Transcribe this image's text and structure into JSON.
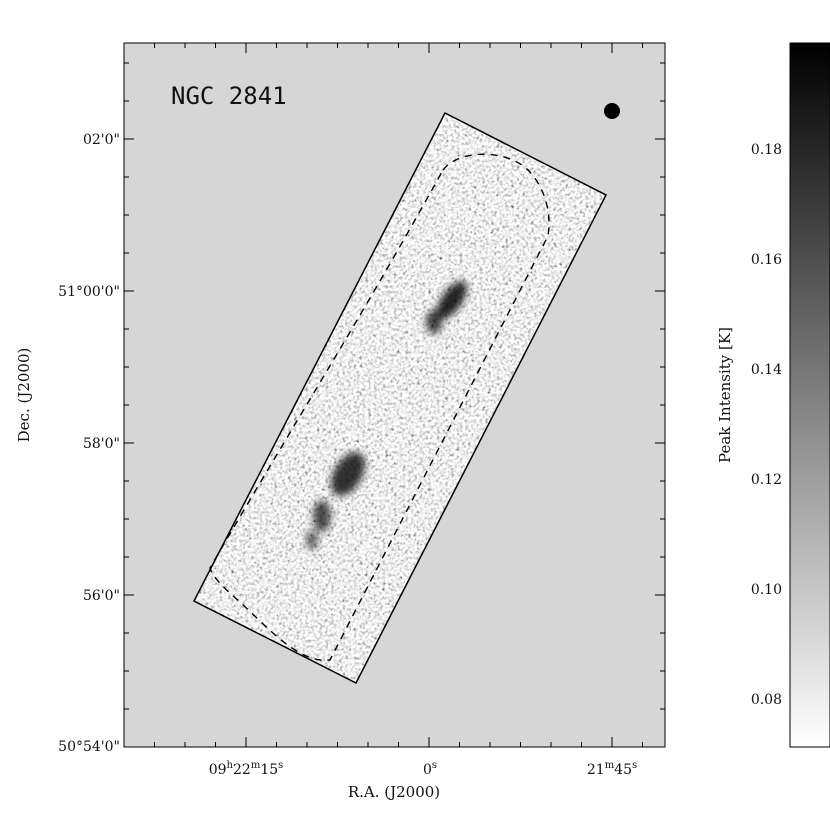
{
  "chart_data": {
    "type": "heatmap",
    "title": "NGC 2841",
    "xlabel": "R.A. (J2000)",
    "ylabel": "Dec. (J2000)",
    "x_ticks": [
      {
        "pre": "09",
        "h": "h",
        "mid": "22",
        "m": "m",
        "post": "15",
        "s": "s"
      },
      {
        "pre": "0",
        "h": "",
        "mid": "",
        "m": "",
        "post": "",
        "s": "s"
      },
      {
        "pre": "",
        "h": "",
        "mid": "21",
        "m": "m",
        "post": "45",
        "s": "s"
      }
    ],
    "y_ticks": [
      "02'0\"",
      "51°00'0\"",
      "58'0\"",
      "56'0\"",
      "50°54'0\""
    ],
    "colorbar": {
      "label": "Peak Intensity [K]",
      "ticks": [
        "0.18",
        "0.16",
        "0.14",
        "0.12",
        "0.10",
        "0.08"
      ],
      "range": [
        0.07,
        0.19
      ]
    },
    "beam": "filled circle, top-right",
    "grid": false,
    "colors": {
      "background": "#d6d6d6",
      "map_high": "#000000",
      "map_low": "#ffffff"
    }
  }
}
